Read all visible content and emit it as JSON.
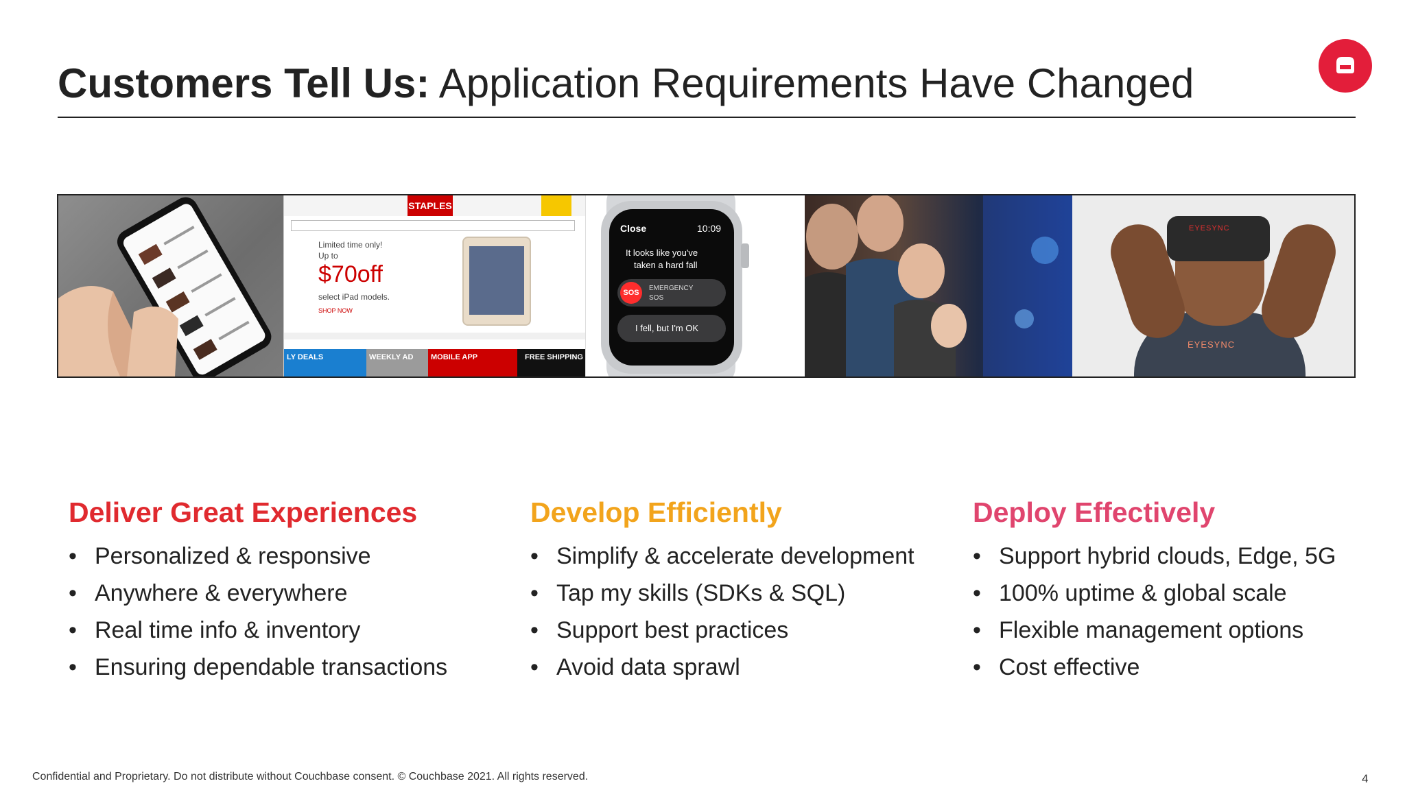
{
  "header": {
    "title_bold": "Customers Tell Us:",
    "title_rest": " Application Requirements Have Changed"
  },
  "logo": {
    "icon": "couchbase-logo-icon",
    "color": "#e31e3a"
  },
  "images": {
    "staples": {
      "brand": "STAPLES",
      "promo_line1": "Limited time only!",
      "promo_line2": "Up to",
      "price": "$70off",
      "promo_line3": "select iPad models.",
      "promo_cta": "SHOP NOW",
      "tabs": [
        "LY DEALS",
        "WEEKLY AD",
        "MOBILE APP",
        "FREE SHIPPING"
      ]
    },
    "watch": {
      "close": "Close",
      "time": "10:09",
      "message_line1": "It looks like you've",
      "message_line2": "taken a hard fall",
      "sos": "SOS",
      "emergency_line1": "EMERGENCY",
      "emergency_line2": "SOS",
      "ok_button": "I fell, but I'm OK"
    },
    "vr": {
      "headset_label": "EYESYNC",
      "shirt_label": "EYESYNC"
    }
  },
  "columns": [
    {
      "heading": "Deliver Great Experiences",
      "color": "#e02a2f",
      "items": [
        "Personalized & responsive",
        "Anywhere & everywhere",
        "Real time info & inventory",
        "Ensuring dependable transactions"
      ]
    },
    {
      "heading": "Develop Efficiently",
      "color": "#f2a41c",
      "items": [
        "Simplify & accelerate development",
        "Tap my skills (SDKs & SQL)",
        "Support best practices",
        "Avoid data sprawl"
      ]
    },
    {
      "heading": "Deploy Effectively",
      "color": "#e0456e",
      "items": [
        "Support hybrid clouds, Edge, 5G",
        "100% uptime & global scale",
        "Flexible management options",
        "Cost effective"
      ]
    }
  ],
  "footer": {
    "disclaimer": "Confidential and Proprietary. Do not distribute without Couchbase consent. © Couchbase 2021. All rights reserved.",
    "page_number": "4"
  }
}
